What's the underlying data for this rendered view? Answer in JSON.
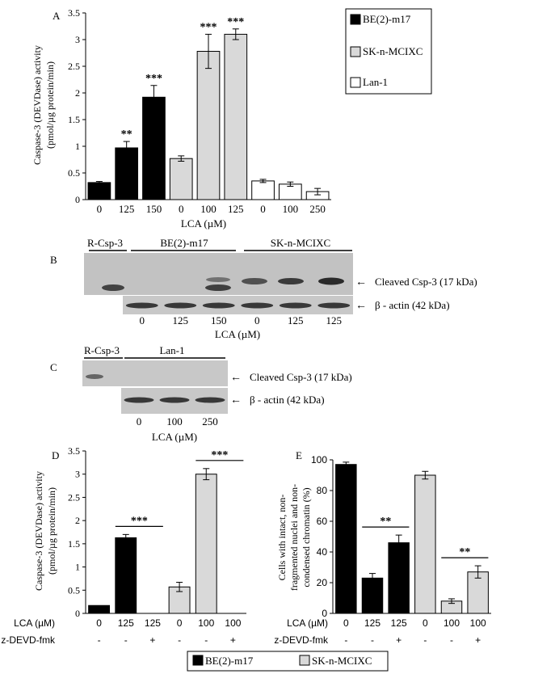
{
  "colors": {
    "black_bar": "#000000",
    "gray_bar": "#d9d9d9",
    "white_bar": "#ffffff",
    "blot_bg": "#bdbdbd"
  },
  "chart_data": [
    {
      "panel": "A",
      "type": "bar",
      "ylabel_line1": "Caspase-3 (DEVDase) activity",
      "ylabel_line2": "(pmol/µg protein/min)",
      "xlabel": "LCA (µM)",
      "ylim": [
        0,
        3.5
      ],
      "yticks": [
        "0",
        "0.5",
        "1",
        "1.5",
        "2",
        "2.5",
        "3",
        "3.5"
      ],
      "categories": [
        "0",
        "125",
        "150",
        "0",
        "100",
        "125",
        "0",
        "100",
        "250"
      ],
      "values": [
        0.32,
        0.97,
        1.92,
        0.77,
        2.78,
        3.1,
        0.35,
        0.29,
        0.15
      ],
      "errors": [
        0.02,
        0.12,
        0.22,
        0.05,
        0.32,
        0.1,
        0.03,
        0.04,
        0.06
      ],
      "groups": [
        "BE(2)-m17",
        "BE(2)-m17",
        "BE(2)-m17",
        "SK-n-MCIXC",
        "SK-n-MCIXC",
        "SK-n-MCIXC",
        "Lan-1",
        "Lan-1",
        "Lan-1"
      ],
      "significance": [
        "",
        "**",
        "***",
        "",
        "***",
        "***",
        "",
        "",
        ""
      ],
      "legend": [
        {
          "label": "BE(2)-m17",
          "color": "#000000"
        },
        {
          "label": "SK-n-MCIXC",
          "color": "#d9d9d9"
        },
        {
          "label": "Lan-1",
          "color": "#ffffff"
        }
      ]
    },
    {
      "panel": "D",
      "type": "bar",
      "ylabel_line1": "Caspase-3 (DEVDase) activity",
      "ylabel_line2": "(pmol/µg protein/min)",
      "ylim": [
        0,
        3.5
      ],
      "yticks": [
        "0",
        "0.5",
        "1",
        "1.5",
        "2",
        "2.5",
        "3",
        "3.5"
      ],
      "categories": [
        "0",
        "125",
        "125",
        "0",
        "100",
        "100"
      ],
      "values": [
        0.17,
        1.63,
        0.0,
        0.57,
        3.0,
        0.0
      ],
      "errors": [
        0.0,
        0.07,
        0.0,
        0.1,
        0.12,
        0.0
      ],
      "groups": [
        "BE(2)-m17",
        "BE(2)-m17",
        "BE(2)-m17",
        "SK-n-MCIXC",
        "SK-n-MCIXC",
        "SK-n-MCIXC"
      ],
      "significance": [
        {
          "from": 1,
          "to": 2,
          "label": "***"
        },
        {
          "from": 4,
          "to": 5,
          "label": "***"
        }
      ],
      "row_labels": [
        "LCA (µM)",
        "z-DEVD-fmk"
      ],
      "zdevd": [
        "-",
        "-",
        "+",
        "-",
        "-",
        "+"
      ]
    },
    {
      "panel": "E",
      "type": "bar",
      "ylabel_line1": "Cells with intact, non-",
      "ylabel_line2": "fragmented nuclei and non-",
      "ylabel_line3": "condensed chromatin (%)",
      "ylim": [
        0,
        100
      ],
      "yticks": [
        "0",
        "20",
        "40",
        "60",
        "80",
        "100"
      ],
      "categories": [
        "0",
        "125",
        "125",
        "0",
        "100",
        "100"
      ],
      "values": [
        97,
        23,
        46,
        90,
        8,
        27
      ],
      "errors": [
        1.5,
        3,
        5,
        2.5,
        1.5,
        4
      ],
      "groups": [
        "BE(2)-m17",
        "BE(2)-m17",
        "BE(2)-m17",
        "SK-n-MCIXC",
        "SK-n-MCIXC",
        "SK-n-MCIXC"
      ],
      "significance": [
        {
          "from": 1,
          "to": 2,
          "label": "**"
        },
        {
          "from": 4,
          "to": 5,
          "label": "**"
        }
      ],
      "row_labels": [
        "LCA (µM)",
        "z-DEVD-fmk"
      ],
      "zdevd": [
        "-",
        "-",
        "+",
        "-",
        "-",
        "+"
      ]
    }
  ],
  "bottom_legend": [
    {
      "label": "BE(2)-m17",
      "color": "#000000"
    },
    {
      "label": "SK-n-MCIXC",
      "color": "#d9d9d9"
    }
  ],
  "blot_b": {
    "panel": "B",
    "top_labels": [
      "R-Csp-3",
      "BE(2)-m17",
      "SK-n-MCIXC"
    ],
    "band1_label": "Cleaved  Csp-3 (17 kDa)",
    "band2_label": "β - actin  (42 kDa)",
    "lanes": [
      "0",
      "125",
      "150",
      "0",
      "125",
      "125"
    ],
    "xlabel": "LCA (µM)"
  },
  "blot_c": {
    "panel": "C",
    "top_labels": [
      "R-Csp-3",
      "Lan-1"
    ],
    "band1_label": "Cleaved  Csp-3 (17 kDa)",
    "band2_label": "β - actin  (42 kDa)",
    "lanes": [
      "0",
      "100",
      "250"
    ],
    "xlabel": "LCA (µM)"
  }
}
